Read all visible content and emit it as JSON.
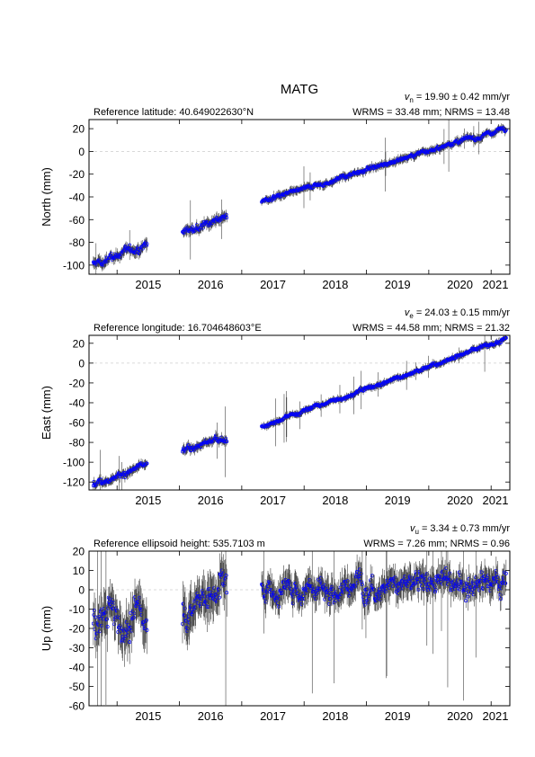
{
  "station": "MATG",
  "x_ticks": [
    "2015",
    "2016",
    "2017",
    "2018",
    "2019",
    "2020",
    "2021"
  ],
  "x_range": [
    2014.55,
    2021.3
  ],
  "marker_color": "#0000ff",
  "error_bar_color": "#444444",
  "chart_data": [
    {
      "type": "scatter",
      "component": "north",
      "reference_text": "Reference latitude: 40.649022630°N",
      "velocity_symbol": "v",
      "velocity_subscript": "n",
      "velocity_text": " = 19.90 ± 0.42 mm/yr",
      "stats_text": "WRMS = 33.48 mm; NRMS = 13.48",
      "ylabel": "North (mm)",
      "ylim": [
        -108,
        28
      ],
      "yticks": [
        20,
        0,
        -20,
        -40,
        -60,
        -80,
        -100
      ],
      "segments": [
        {
          "x_start": 2014.62,
          "x_end": 2015.48,
          "y_start": -99,
          "y_end": -80,
          "noise": 3,
          "err": 4
        },
        {
          "x_start": 2016.05,
          "x_end": 2016.76,
          "y_start": -71,
          "y_end": -57,
          "noise": 2.5,
          "err": 4
        },
        {
          "x_start": 2017.32,
          "x_end": 2021.24,
          "y_start": -44,
          "y_end": 21,
          "noise": 1.5,
          "err": 3
        }
      ]
    },
    {
      "type": "scatter",
      "component": "east",
      "reference_text": "Reference longitude: 16.704648603°E",
      "velocity_symbol": "v",
      "velocity_subscript": "e",
      "velocity_text": " = 24.03 ± 0.15 mm/yr",
      "stats_text": "WRMS = 44.58 mm; NRMS = 21.32",
      "ylabel": "East (mm)",
      "ylim": [
        -128,
        28
      ],
      "yticks": [
        20,
        0,
        -20,
        -40,
        -60,
        -80,
        -100,
        -120
      ],
      "segments": [
        {
          "x_start": 2014.62,
          "x_end": 2015.48,
          "y_start": -122,
          "y_end": -104,
          "noise": 2.5,
          "err": 4
        },
        {
          "x_start": 2016.05,
          "x_end": 2016.76,
          "y_start": -89,
          "y_end": -75,
          "noise": 2.5,
          "err": 4
        },
        {
          "x_start": 2017.32,
          "x_end": 2021.24,
          "y_start": -64,
          "y_end": 24,
          "noise": 1.5,
          "err": 3
        }
      ]
    },
    {
      "type": "scatter",
      "component": "up",
      "reference_text": "Reference ellipsoid height: 535.7103 m",
      "velocity_symbol": "v",
      "velocity_subscript": "u",
      "velocity_text": " = 3.34 ± 0.73 mm/yr",
      "stats_text": "WRMS = 7.26 mm; NRMS = 0.96",
      "ylabel": "Up (mm)",
      "ylim": [
        -60,
        20
      ],
      "yticks": [
        20,
        10,
        0,
        -10,
        -20,
        -30,
        -40,
        -50,
        -60
      ],
      "segments": [
        {
          "x_start": 2014.62,
          "x_end": 2015.48,
          "y_start": -15,
          "y_end": -12,
          "noise": 7,
          "err": 9
        },
        {
          "x_start": 2016.05,
          "x_end": 2016.76,
          "y_start": -8,
          "y_end": 4,
          "noise": 7,
          "err": 9
        },
        {
          "x_start": 2017.32,
          "x_end": 2021.24,
          "y_start": 2,
          "y_end": 4,
          "noise": 5,
          "err": 6
        }
      ]
    }
  ]
}
